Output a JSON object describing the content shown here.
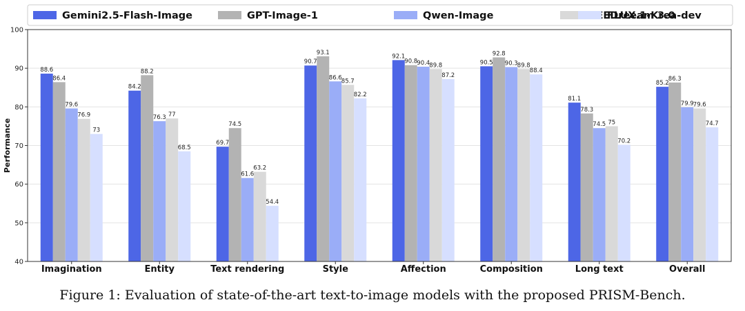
{
  "chart_data": {
    "type": "bar",
    "ylabel": "Performance",
    "ylim": [
      40,
      100
    ],
    "yticks": [
      40,
      50,
      60,
      70,
      80,
      90,
      100
    ],
    "grid": true,
    "legend_position": "top",
    "categories": [
      "Imagination",
      "Entity",
      "Text rendering",
      "Style",
      "Affection",
      "Composition",
      "Long text",
      "Overall"
    ],
    "series": [
      {
        "name": "Gemini2.5-Flash-Image",
        "color": "#4d66e6",
        "values": [
          88.6,
          84.2,
          69.7,
          90.7,
          92.1,
          90.5,
          81.1,
          85.2
        ]
      },
      {
        "name": "GPT-Image-1",
        "color": "#b3b3b3",
        "values": [
          86.4,
          88.2,
          74.5,
          93.1,
          90.8,
          92.8,
          78.3,
          86.3
        ]
      },
      {
        "name": "Qwen-Image",
        "color": "#9aadf7",
        "values": [
          79.6,
          76.3,
          61.6,
          86.6,
          90.4,
          90.3,
          74.5,
          79.9
        ]
      },
      {
        "name": "SEEDreeam 3.0",
        "color": "#d9d9d9",
        "values": [
          76.9,
          77,
          63.2,
          85.7,
          89.8,
          89.8,
          75,
          79.6
        ]
      },
      {
        "name": "FLUX.1-Krea-dev",
        "color": "#d6dfff",
        "values": [
          73,
          68.5,
          54.4,
          82.2,
          87.2,
          88.4,
          70.2,
          74.7
        ]
      }
    ]
  },
  "caption": "Figure 1: Evaluation of state-of-the-art text-to-image models with the proposed PRISM-Bench."
}
